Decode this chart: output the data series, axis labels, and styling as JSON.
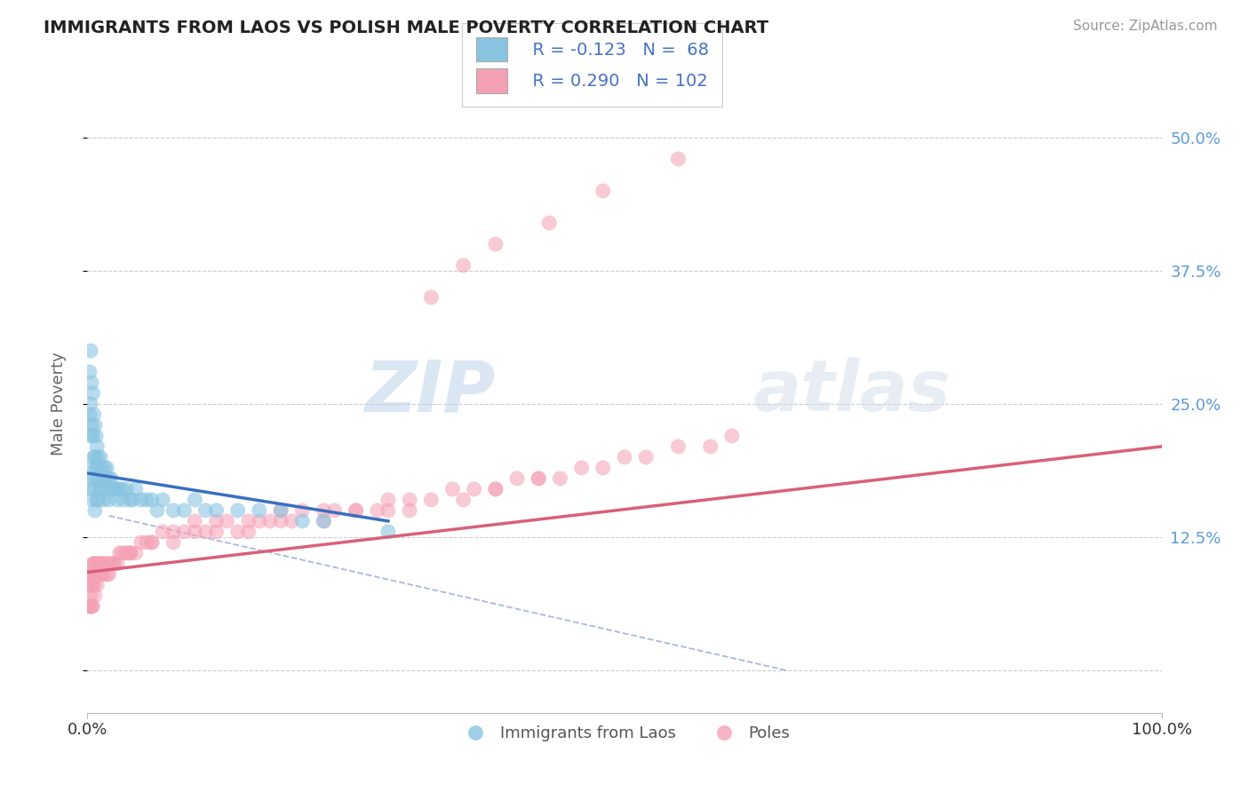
{
  "title": "IMMIGRANTS FROM LAOS VS POLISH MALE POVERTY CORRELATION CHART",
  "source": "Source: ZipAtlas.com",
  "ylabel": "Male Poverty",
  "y_ticks": [
    0.0,
    0.125,
    0.25,
    0.375,
    0.5
  ],
  "y_tick_labels": [
    "",
    "12.5%",
    "25.0%",
    "37.5%",
    "50.0%"
  ],
  "xlim": [
    0.0,
    1.0
  ],
  "ylim": [
    -0.04,
    0.54
  ],
  "legend_blue_label": "Immigrants from Laos",
  "legend_pink_label": "Poles",
  "r_blue": "-0.123",
  "n_blue": "68",
  "r_pink": "0.290",
  "n_pink": "102",
  "blue_color": "#89c4e1",
  "pink_color": "#f4a0b5",
  "trend_blue_color": "#3a6fbf",
  "trend_pink_color": "#d9607a",
  "trend_dash_color": "#aab8dd",
  "background_color": "#ffffff",
  "grid_color": "#cccccc",
  "title_color": "#222222",
  "watermark_color": "#d0dff0",
  "watermark_text": "ZIPatlas",
  "blue_scatter_x": [
    0.002,
    0.002,
    0.003,
    0.003,
    0.003,
    0.004,
    0.004,
    0.004,
    0.004,
    0.005,
    0.005,
    0.005,
    0.005,
    0.006,
    0.006,
    0.006,
    0.007,
    0.007,
    0.007,
    0.007,
    0.008,
    0.008,
    0.009,
    0.009,
    0.009,
    0.01,
    0.01,
    0.01,
    0.012,
    0.012,
    0.013,
    0.013,
    0.015,
    0.015,
    0.016,
    0.017,
    0.018,
    0.019,
    0.02,
    0.02,
    0.022,
    0.024,
    0.025,
    0.027,
    0.028,
    0.03,
    0.032,
    0.034,
    0.036,
    0.04,
    0.042,
    0.045,
    0.05,
    0.055,
    0.06,
    0.065,
    0.07,
    0.08,
    0.09,
    0.1,
    0.11,
    0.12,
    0.14,
    0.16,
    0.18,
    0.2,
    0.22,
    0.28
  ],
  "blue_scatter_y": [
    0.28,
    0.24,
    0.3,
    0.25,
    0.22,
    0.27,
    0.23,
    0.19,
    0.17,
    0.26,
    0.22,
    0.18,
    0.16,
    0.24,
    0.2,
    0.17,
    0.23,
    0.2,
    0.18,
    0.15,
    0.22,
    0.19,
    0.21,
    0.19,
    0.16,
    0.2,
    0.18,
    0.16,
    0.2,
    0.17,
    0.19,
    0.17,
    0.18,
    0.16,
    0.19,
    0.18,
    0.19,
    0.17,
    0.18,
    0.16,
    0.18,
    0.17,
    0.17,
    0.17,
    0.16,
    0.17,
    0.17,
    0.16,
    0.17,
    0.16,
    0.16,
    0.17,
    0.16,
    0.16,
    0.16,
    0.15,
    0.16,
    0.15,
    0.15,
    0.16,
    0.15,
    0.15,
    0.15,
    0.15,
    0.15,
    0.14,
    0.14,
    0.13
  ],
  "pink_scatter_x": [
    0.001,
    0.002,
    0.002,
    0.003,
    0.003,
    0.003,
    0.004,
    0.004,
    0.004,
    0.005,
    0.005,
    0.005,
    0.005,
    0.006,
    0.006,
    0.007,
    0.007,
    0.007,
    0.008,
    0.008,
    0.009,
    0.009,
    0.009,
    0.01,
    0.01,
    0.012,
    0.013,
    0.013,
    0.015,
    0.015,
    0.016,
    0.017,
    0.018,
    0.02,
    0.02,
    0.022,
    0.024,
    0.025,
    0.028,
    0.03,
    0.032,
    0.035,
    0.038,
    0.04,
    0.045,
    0.05,
    0.055,
    0.06,
    0.07,
    0.08,
    0.09,
    0.1,
    0.11,
    0.12,
    0.13,
    0.14,
    0.15,
    0.16,
    0.17,
    0.18,
    0.19,
    0.2,
    0.22,
    0.23,
    0.25,
    0.27,
    0.28,
    0.3,
    0.32,
    0.34,
    0.36,
    0.38,
    0.4,
    0.42,
    0.44,
    0.46,
    0.48,
    0.5,
    0.52,
    0.55,
    0.58,
    0.6,
    0.35,
    0.3,
    0.42,
    0.38,
    0.28,
    0.25,
    0.22,
    0.18,
    0.15,
    0.12,
    0.1,
    0.08,
    0.06,
    0.04,
    0.48,
    0.43,
    0.55,
    0.35,
    0.32,
    0.38
  ],
  "pink_scatter_y": [
    0.06,
    0.08,
    0.06,
    0.09,
    0.07,
    0.06,
    0.09,
    0.08,
    0.06,
    0.1,
    0.09,
    0.08,
    0.06,
    0.1,
    0.08,
    0.1,
    0.09,
    0.07,
    0.1,
    0.09,
    0.1,
    0.09,
    0.08,
    0.1,
    0.09,
    0.1,
    0.1,
    0.09,
    0.1,
    0.09,
    0.1,
    0.1,
    0.09,
    0.1,
    0.09,
    0.1,
    0.1,
    0.1,
    0.1,
    0.11,
    0.11,
    0.11,
    0.11,
    0.11,
    0.11,
    0.12,
    0.12,
    0.12,
    0.13,
    0.13,
    0.13,
    0.14,
    0.13,
    0.14,
    0.14,
    0.13,
    0.14,
    0.14,
    0.14,
    0.15,
    0.14,
    0.15,
    0.15,
    0.15,
    0.15,
    0.15,
    0.16,
    0.16,
    0.16,
    0.17,
    0.17,
    0.17,
    0.18,
    0.18,
    0.18,
    0.19,
    0.19,
    0.2,
    0.2,
    0.21,
    0.21,
    0.22,
    0.16,
    0.15,
    0.18,
    0.17,
    0.15,
    0.15,
    0.14,
    0.14,
    0.13,
    0.13,
    0.13,
    0.12,
    0.12,
    0.11,
    0.45,
    0.42,
    0.48,
    0.38,
    0.35,
    0.4
  ],
  "blue_trend_x0": 0.0,
  "blue_trend_x1": 0.28,
  "blue_trend_y0": 0.185,
  "blue_trend_y1": 0.14,
  "pink_trend_x0": 0.0,
  "pink_trend_x1": 1.0,
  "pink_trend_y0": 0.092,
  "pink_trend_y1": 0.21,
  "dash_trend_x0": 0.02,
  "dash_trend_x1": 0.65,
  "dash_trend_y0": 0.145,
  "dash_trend_y1": 0.0
}
